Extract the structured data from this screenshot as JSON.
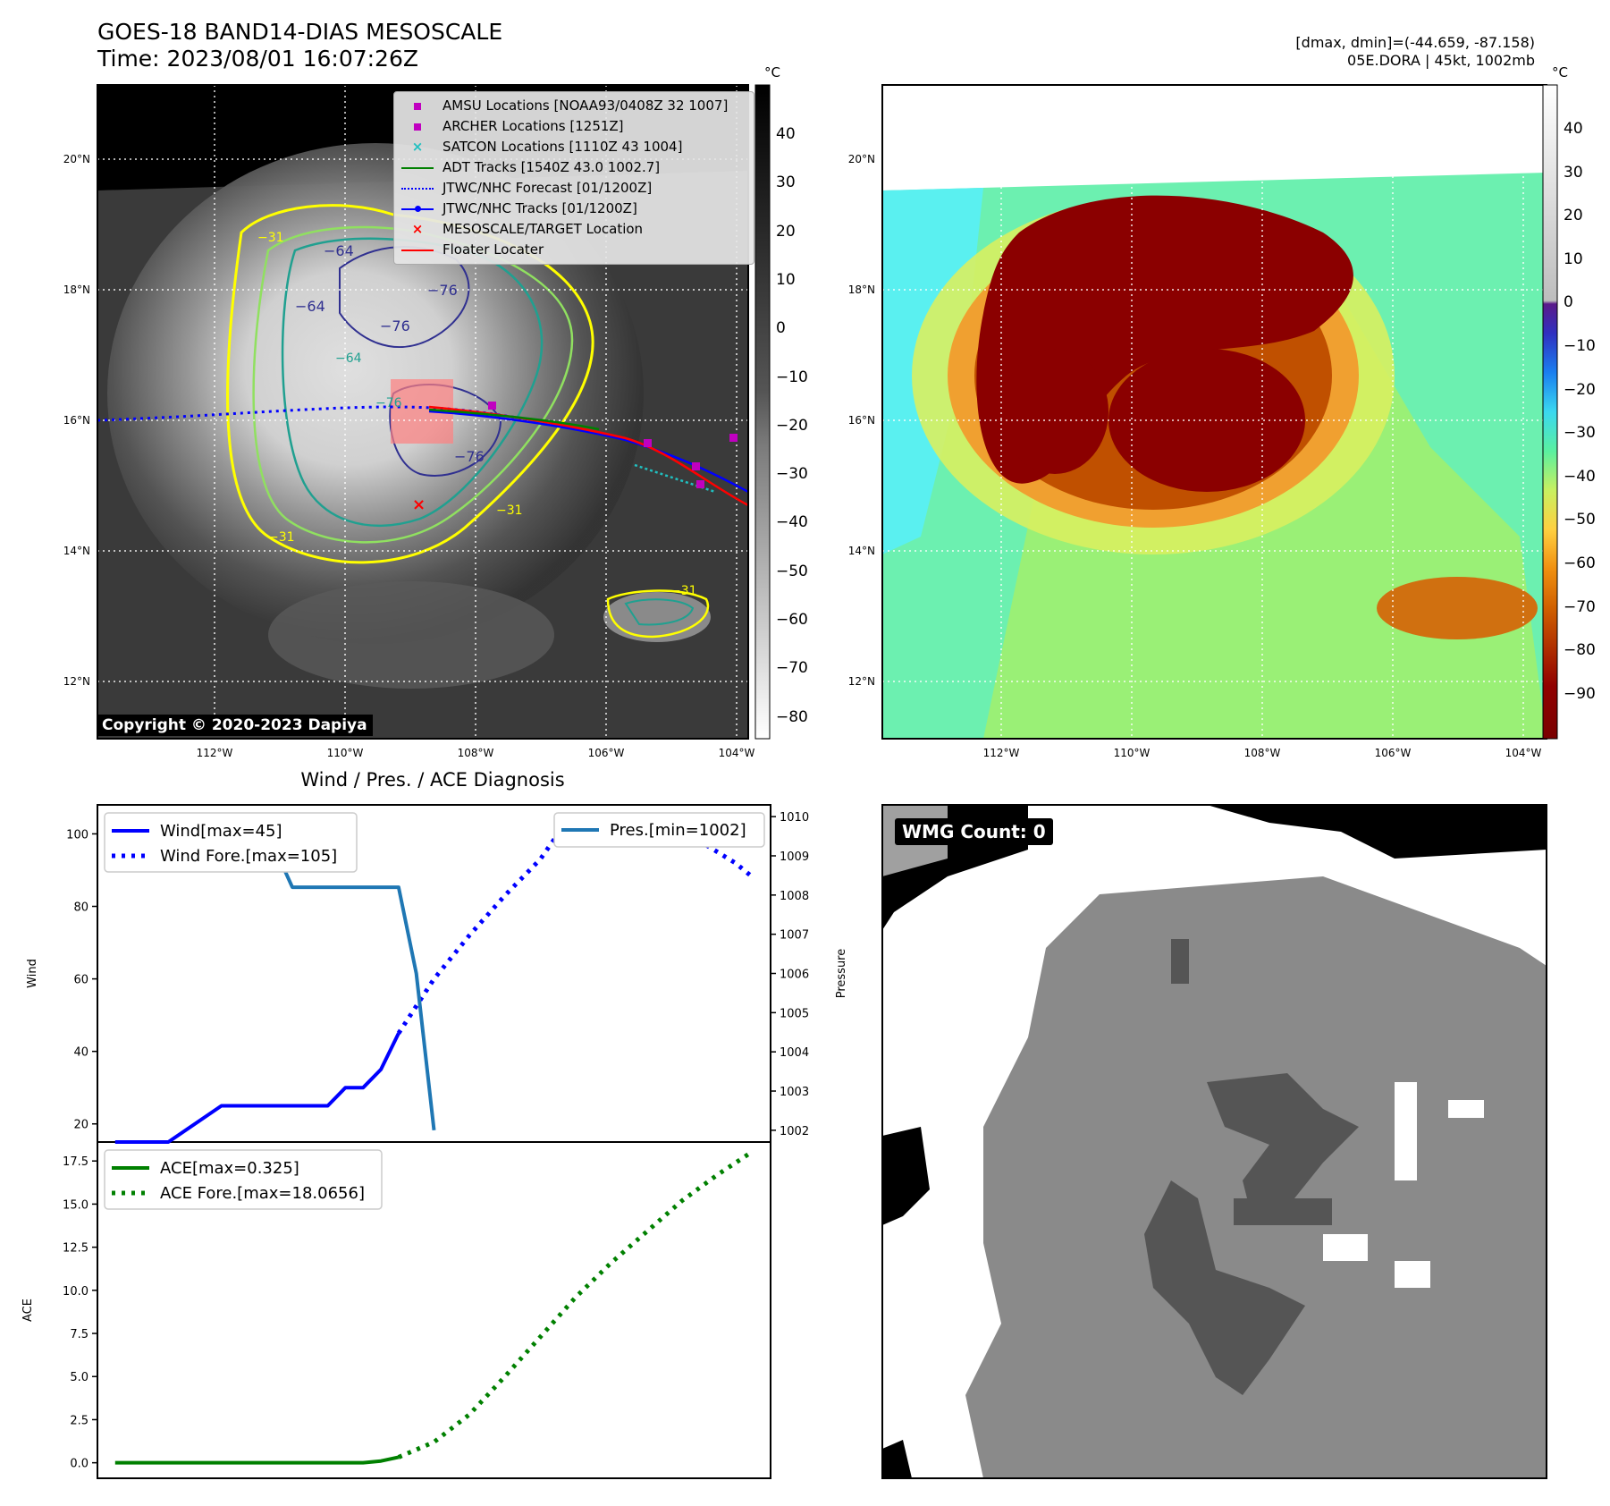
{
  "header": {
    "title_line1": "GOES-18 BAND14-DIAS MESOSCALE",
    "title_line2": "Time: 2023/08/01 16:07:26Z",
    "stats_line1": "[dmax, dmin]=(-44.659, -87.158)",
    "stats_line2": "05E.DORA | 45kt, 1002mb"
  },
  "ir_panel": {
    "colorbar_unit": "°C",
    "colorbar_ticks": [
      "40",
      "30",
      "20",
      "10",
      "0",
      "−10",
      "−20",
      "−30",
      "−40",
      "−50",
      "−60",
      "−70",
      "−80"
    ],
    "copyright": "Copyright © 2020-2023 Dapiya",
    "contour_labels": [
      "−64",
      "−76",
      "−76",
      "−64",
      "−76",
      "−64",
      "−76",
      "−31",
      "−31",
      "−31",
      "−31"
    ],
    "legend": [
      {
        "label": "AMSU Locations [NOAA93/0408Z 32 1007]",
        "color": "#c000c0",
        "marker": "square"
      },
      {
        "label": "ARCHER Locations [1251Z]",
        "color": "#c000c0",
        "marker": "square"
      },
      {
        "label": "SATCON Locations [1110Z 43 1004]",
        "color": "#20c0c0",
        "marker": "x"
      },
      {
        "label": "ADT Tracks [1540Z 43.0 1002.7]",
        "color": "#008000",
        "marker": "line"
      },
      {
        "label": "JTWC/NHC Forecast [01/1200Z]",
        "color": "#0000ff",
        "marker": "dotted"
      },
      {
        "label": "JTWC/NHC Tracks [01/1200Z]",
        "color": "#0000ff",
        "marker": "line-dot"
      },
      {
        "label": "MESOSCALE/TARGET Location",
        "color": "#ff0000",
        "marker": "x"
      },
      {
        "label": "Floater Locater",
        "color": "#ff0000",
        "marker": "line"
      }
    ]
  },
  "enhanced_panel": {
    "colorbar_unit": "°C",
    "colorbar_ticks": [
      "40",
      "30",
      "20",
      "10",
      "0",
      "−10",
      "−20",
      "−30",
      "−40",
      "−50",
      "−60",
      "−70",
      "−80",
      "−90"
    ]
  },
  "map_axes": {
    "lat_labels": [
      "20°N",
      "18°N",
      "16°N",
      "14°N",
      "12°N"
    ],
    "lon_labels": [
      "112°W",
      "110°W",
      "108°W",
      "106°W",
      "104°W"
    ]
  },
  "wmg_panel": {
    "label": "WMG Count: 0"
  },
  "chart_data": [
    {
      "type": "line",
      "title": "Wind / Pres. / ACE Diagnosis",
      "ylabel": "Wind",
      "ylabel_right": "Pressure",
      "ylim": [
        15,
        108
      ],
      "y2lim": [
        1001.7,
        1010.3
      ],
      "yticks": [
        20,
        40,
        60,
        80,
        100
      ],
      "y2ticks": [
        1002,
        1003,
        1004,
        1005,
        1006,
        1007,
        1008,
        1009,
        1010
      ],
      "series": [
        {
          "name": "Wind[max=45]",
          "color": "#0000ff",
          "style": "solid",
          "x": [
            0,
            3,
            6,
            8,
            10,
            12,
            13,
            14,
            15,
            16
          ],
          "y": [
            15,
            15,
            25,
            25,
            25,
            25,
            30,
            30,
            35,
            45
          ]
        },
        {
          "name": "Wind Fore.[max=105]",
          "color": "#0000ff",
          "style": "dotted",
          "x": [
            16,
            18,
            20,
            22,
            24,
            25,
            27,
            30,
            32,
            33,
            35,
            36
          ],
          "y": [
            45,
            60,
            72,
            83,
            93,
            100,
            105,
            105,
            105,
            98,
            92,
            88
          ]
        },
        {
          "name": "Pres.[min=1002]",
          "color": "#1f77b4",
          "style": "solid",
          "axis": "right",
          "x": [
            1,
            2,
            3,
            4,
            5,
            6,
            8,
            9,
            10,
            11,
            12,
            13,
            14,
            15,
            16,
            17,
            18
          ],
          "y": [
            1010,
            1010,
            1010,
            1010,
            1010,
            1009.2,
            1009.2,
            1009.2,
            1008.2,
            1008.2,
            1008.2,
            1008.2,
            1008.2,
            1008.2,
            1008.2,
            1006,
            1002
          ]
        }
      ],
      "xlim": [
        -1,
        37
      ]
    },
    {
      "type": "line",
      "ylabel": "ACE",
      "ylim": [
        -0.9,
        18.6
      ],
      "yticks": [
        0.0,
        2.5,
        5.0,
        7.5,
        10.0,
        12.5,
        15.0,
        17.5
      ],
      "ytick_labels": [
        "0.0",
        "2.5",
        "5.0",
        "7.5",
        "10.0",
        "12.5",
        "15.0",
        "17.5"
      ],
      "series": [
        {
          "name": "ACE[max=0.325]",
          "color": "#008000",
          "style": "solid",
          "x": [
            0,
            4,
            8,
            12,
            14,
            15,
            16
          ],
          "y": [
            0,
            0,
            0,
            0,
            0,
            0.1,
            0.325
          ]
        },
        {
          "name": "ACE Fore.[max=18.0656]",
          "color": "#008000",
          "style": "dotted",
          "x": [
            16,
            18,
            20,
            22,
            24,
            26,
            28,
            30,
            32,
            34,
            36
          ],
          "y": [
            0.325,
            1.2,
            2.8,
            5.0,
            7.3,
            9.6,
            11.6,
            13.4,
            15.2,
            16.7,
            18.0656
          ]
        }
      ],
      "xlim": [
        -1,
        37
      ]
    }
  ]
}
